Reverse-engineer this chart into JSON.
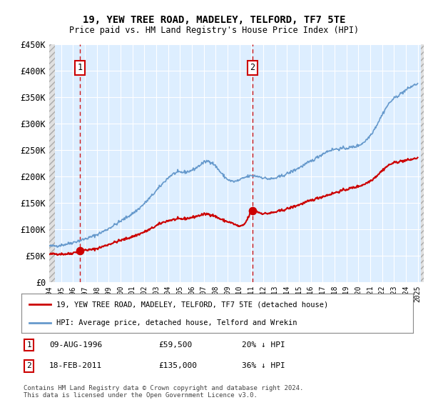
{
  "title": "19, YEW TREE ROAD, MADELEY, TELFORD, TF7 5TE",
  "subtitle": "Price paid vs. HM Land Registry's House Price Index (HPI)",
  "sale1_year": 1996.6,
  "sale1_price": 59500,
  "sale1_label": "1",
  "sale1_date": "09-AUG-1996",
  "sale1_pct": "20% ↓ HPI",
  "sale2_year": 2011.1,
  "sale2_price": 135000,
  "sale2_label": "2",
  "sale2_date": "18-FEB-2011",
  "sale2_pct": "36% ↓ HPI",
  "ylim_max": 450000,
  "xmin": 1994.0,
  "xmax": 2025.5,
  "red_line_color": "#cc0000",
  "blue_line_color": "#6699cc",
  "plot_bg_color": "#ddeeff",
  "hatch_bg_color": "#e0e0e0",
  "grid_color": "#ffffff",
  "legend_line1": "19, YEW TREE ROAD, MADELEY, TELFORD, TF7 5TE (detached house)",
  "legend_line2": "HPI: Average price, detached house, Telford and Wrekin",
  "footer1": "Contains HM Land Registry data © Crown copyright and database right 2024.",
  "footer2": "This data is licensed under the Open Government Licence v3.0.",
  "yticks": [
    0,
    50000,
    100000,
    150000,
    200000,
    250000,
    300000,
    350000,
    400000,
    450000
  ],
  "ytick_labels": [
    "£0",
    "£50K",
    "£100K",
    "£150K",
    "£200K",
    "£250K",
    "£300K",
    "£350K",
    "£400K",
    "£450K"
  ],
  "xticks": [
    1994,
    1995,
    1996,
    1997,
    1998,
    1999,
    2000,
    2001,
    2002,
    2003,
    2004,
    2005,
    2006,
    2007,
    2008,
    2009,
    2010,
    2011,
    2012,
    2013,
    2014,
    2015,
    2016,
    2017,
    2018,
    2019,
    2020,
    2021,
    2022,
    2023,
    2024,
    2025
  ],
  "hpi_anchors_x": [
    1994.0,
    1995.5,
    1996.5,
    1997.5,
    1998.5,
    1999.5,
    2000.5,
    2001.5,
    2002.5,
    2003.5,
    2004.5,
    2005.5,
    2006.5,
    2007.5,
    2008.5,
    2009.5,
    2010.5,
    2011.5,
    2012.5,
    2013.5,
    2014.5,
    2015.5,
    2016.5,
    2017.5,
    2018.5,
    2019.5,
    2020.5,
    2021.5,
    2022.5,
    2023.5,
    2024.5,
    2025.0
  ],
  "hpi_anchors_y": [
    68000,
    72000,
    78000,
    85000,
    95000,
    108000,
    122000,
    138000,
    160000,
    185000,
    205000,
    208000,
    218000,
    228000,
    205000,
    190000,
    198000,
    200000,
    195000,
    200000,
    210000,
    222000,
    235000,
    248000,
    252000,
    255000,
    265000,
    295000,
    335000,
    355000,
    370000,
    375000
  ],
  "red_anchors_x": [
    1994.0,
    1995.0,
    1996.0,
    1996.6,
    1997.5,
    1998.5,
    1999.5,
    2000.5,
    2001.5,
    2002.5,
    2003.5,
    2004.5,
    2005.5,
    2006.5,
    2007.5,
    2008.5,
    2009.5,
    2010.5,
    2011.1,
    2011.5,
    2012.5,
    2013.5,
    2014.5,
    2015.5,
    2016.5,
    2017.5,
    2018.5,
    2019.5,
    2020.5,
    2021.5,
    2022.5,
    2023.5,
    2024.5,
    2025.0
  ],
  "red_anchors_y": [
    52000,
    53000,
    55000,
    59500,
    61000,
    67000,
    75000,
    82000,
    90000,
    100000,
    112000,
    118000,
    120000,
    125000,
    128000,
    118000,
    110000,
    112000,
    135000,
    133000,
    130000,
    135000,
    142000,
    150000,
    158000,
    165000,
    172000,
    178000,
    185000,
    200000,
    220000,
    228000,
    232000,
    235000
  ]
}
